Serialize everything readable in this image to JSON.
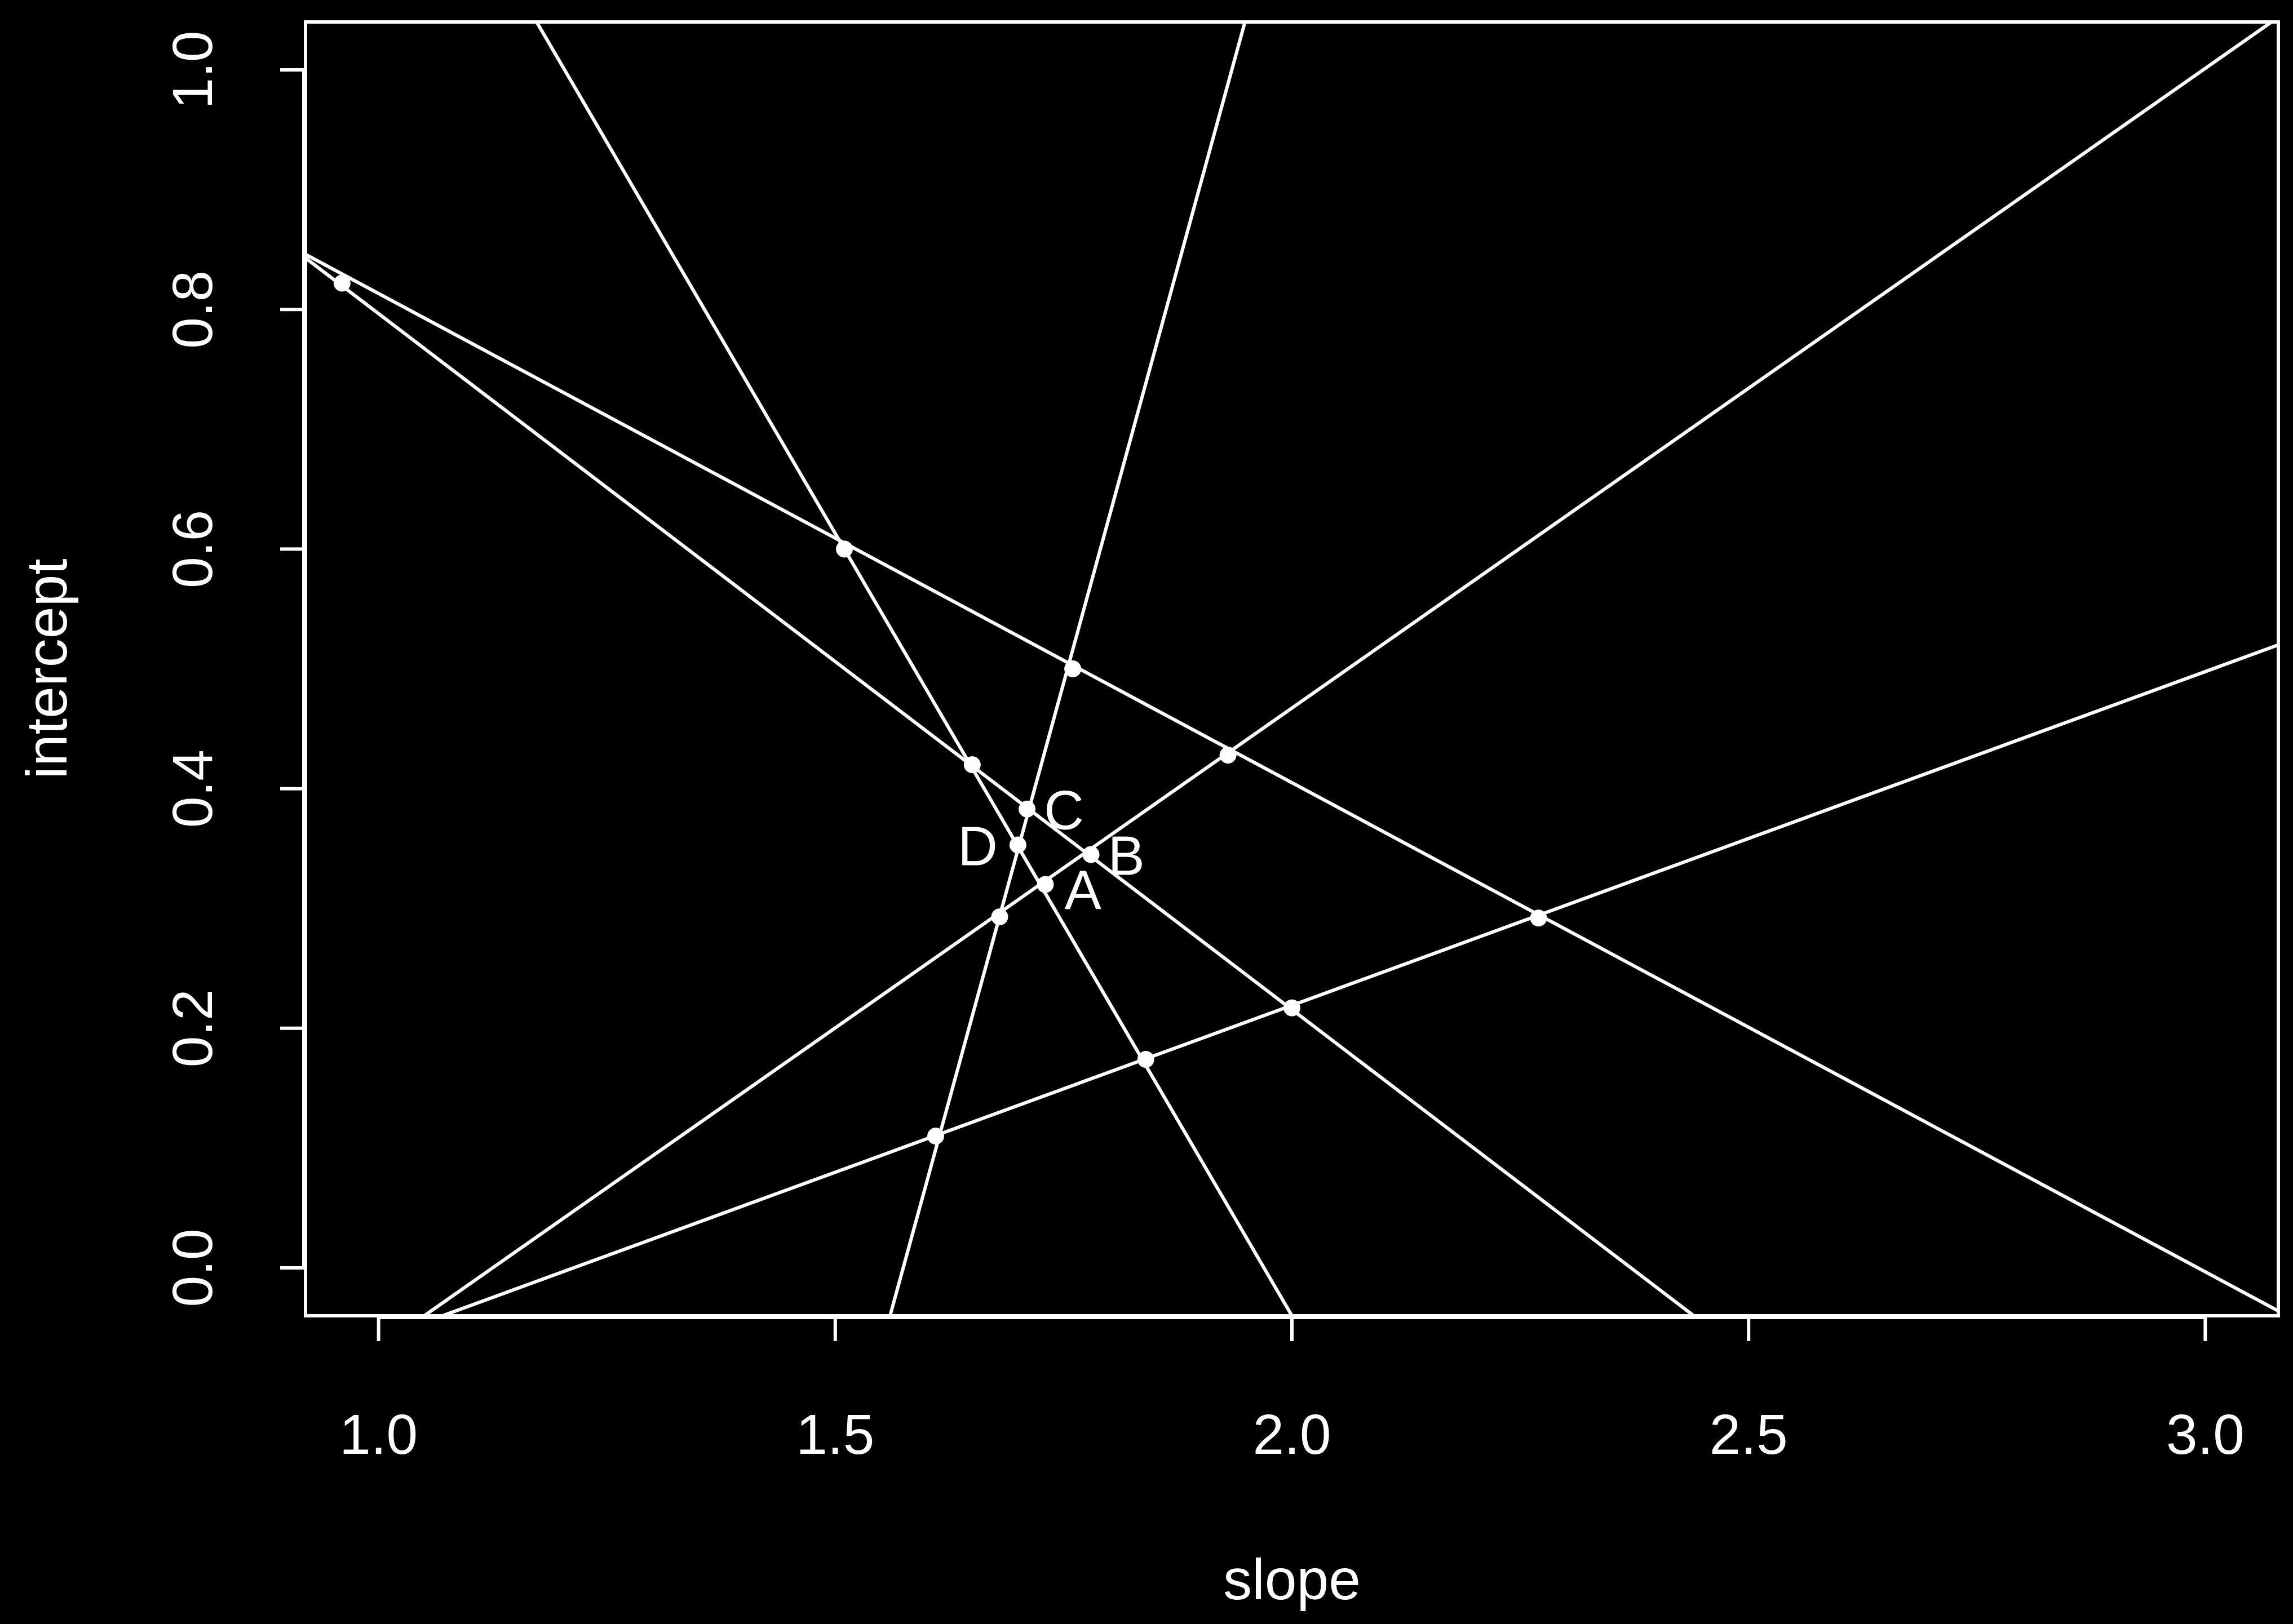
{
  "chart_data": {
    "type": "line",
    "title": "",
    "xlabel": "slope",
    "ylabel": "intercept",
    "xlim": [
      0.92,
      3.08
    ],
    "ylim": [
      -0.04,
      1.04
    ],
    "x_ticks": [
      1.0,
      1.5,
      2.0,
      2.5,
      3.0
    ],
    "x_tick_labels": [
      "1.0",
      "1.5",
      "2.0",
      "2.5",
      "3.0"
    ],
    "y_ticks": [
      0.0,
      0.2,
      0.4,
      0.6,
      0.8,
      1.0
    ],
    "y_tick_labels": [
      "0.0",
      "0.2",
      "0.4",
      "0.6",
      "0.8",
      "1.0"
    ],
    "grid": false,
    "legend": "none",
    "colors": {
      "background": "#000000",
      "foreground": "#ffffff"
    },
    "lines": [
      {
        "x": [
          0.92,
          3.08
        ],
        "y": [
          0.846,
          -0.036
        ]
      },
      {
        "x": [
          0.92,
          2.44
        ],
        "y": [
          0.843,
          -0.04
        ]
      },
      {
        "x": [
          1.17,
          2.0
        ],
        "y": [
          1.044,
          -0.04
        ]
      },
      {
        "x": [
          1.56,
          1.95
        ],
        "y": [
          -0.04,
          1.044
        ]
      },
      {
        "x": [
          1.05,
          3.08
        ],
        "y": [
          -0.04,
          1.044
        ]
      },
      {
        "x": [
          1.07,
          3.08
        ],
        "y": [
          -0.04,
          0.52
        ]
      }
    ],
    "points": [
      {
        "x": 0.96,
        "y": 0.822
      },
      {
        "x": 1.51,
        "y": 0.6
      },
      {
        "x": 1.76,
        "y": 0.5
      },
      {
        "x": 1.93,
        "y": 0.428
      },
      {
        "x": 2.27,
        "y": 0.292
      },
      {
        "x": 1.65,
        "y": 0.42
      },
      {
        "x": 2.0,
        "y": 0.217
      },
      {
        "x": 1.84,
        "y": 0.174
      },
      {
        "x": 1.61,
        "y": 0.11
      },
      {
        "x": 1.68,
        "y": 0.293
      },
      {
        "x": 1.73,
        "y": 0.32
      },
      {
        "x": 1.78,
        "y": 0.345
      },
      {
        "x": 1.71,
        "y": 0.383
      },
      {
        "x": 1.7,
        "y": 0.353
      }
    ],
    "annotations": [
      {
        "text": "A",
        "x": 1.73,
        "y": 0.32,
        "anchor": "right-below"
      },
      {
        "text": "B",
        "x": 1.78,
        "y": 0.345,
        "anchor": "right"
      },
      {
        "text": "C",
        "x": 1.71,
        "y": 0.383,
        "anchor": "right"
      },
      {
        "text": "D",
        "x": 1.7,
        "y": 0.353,
        "anchor": "left"
      }
    ]
  }
}
